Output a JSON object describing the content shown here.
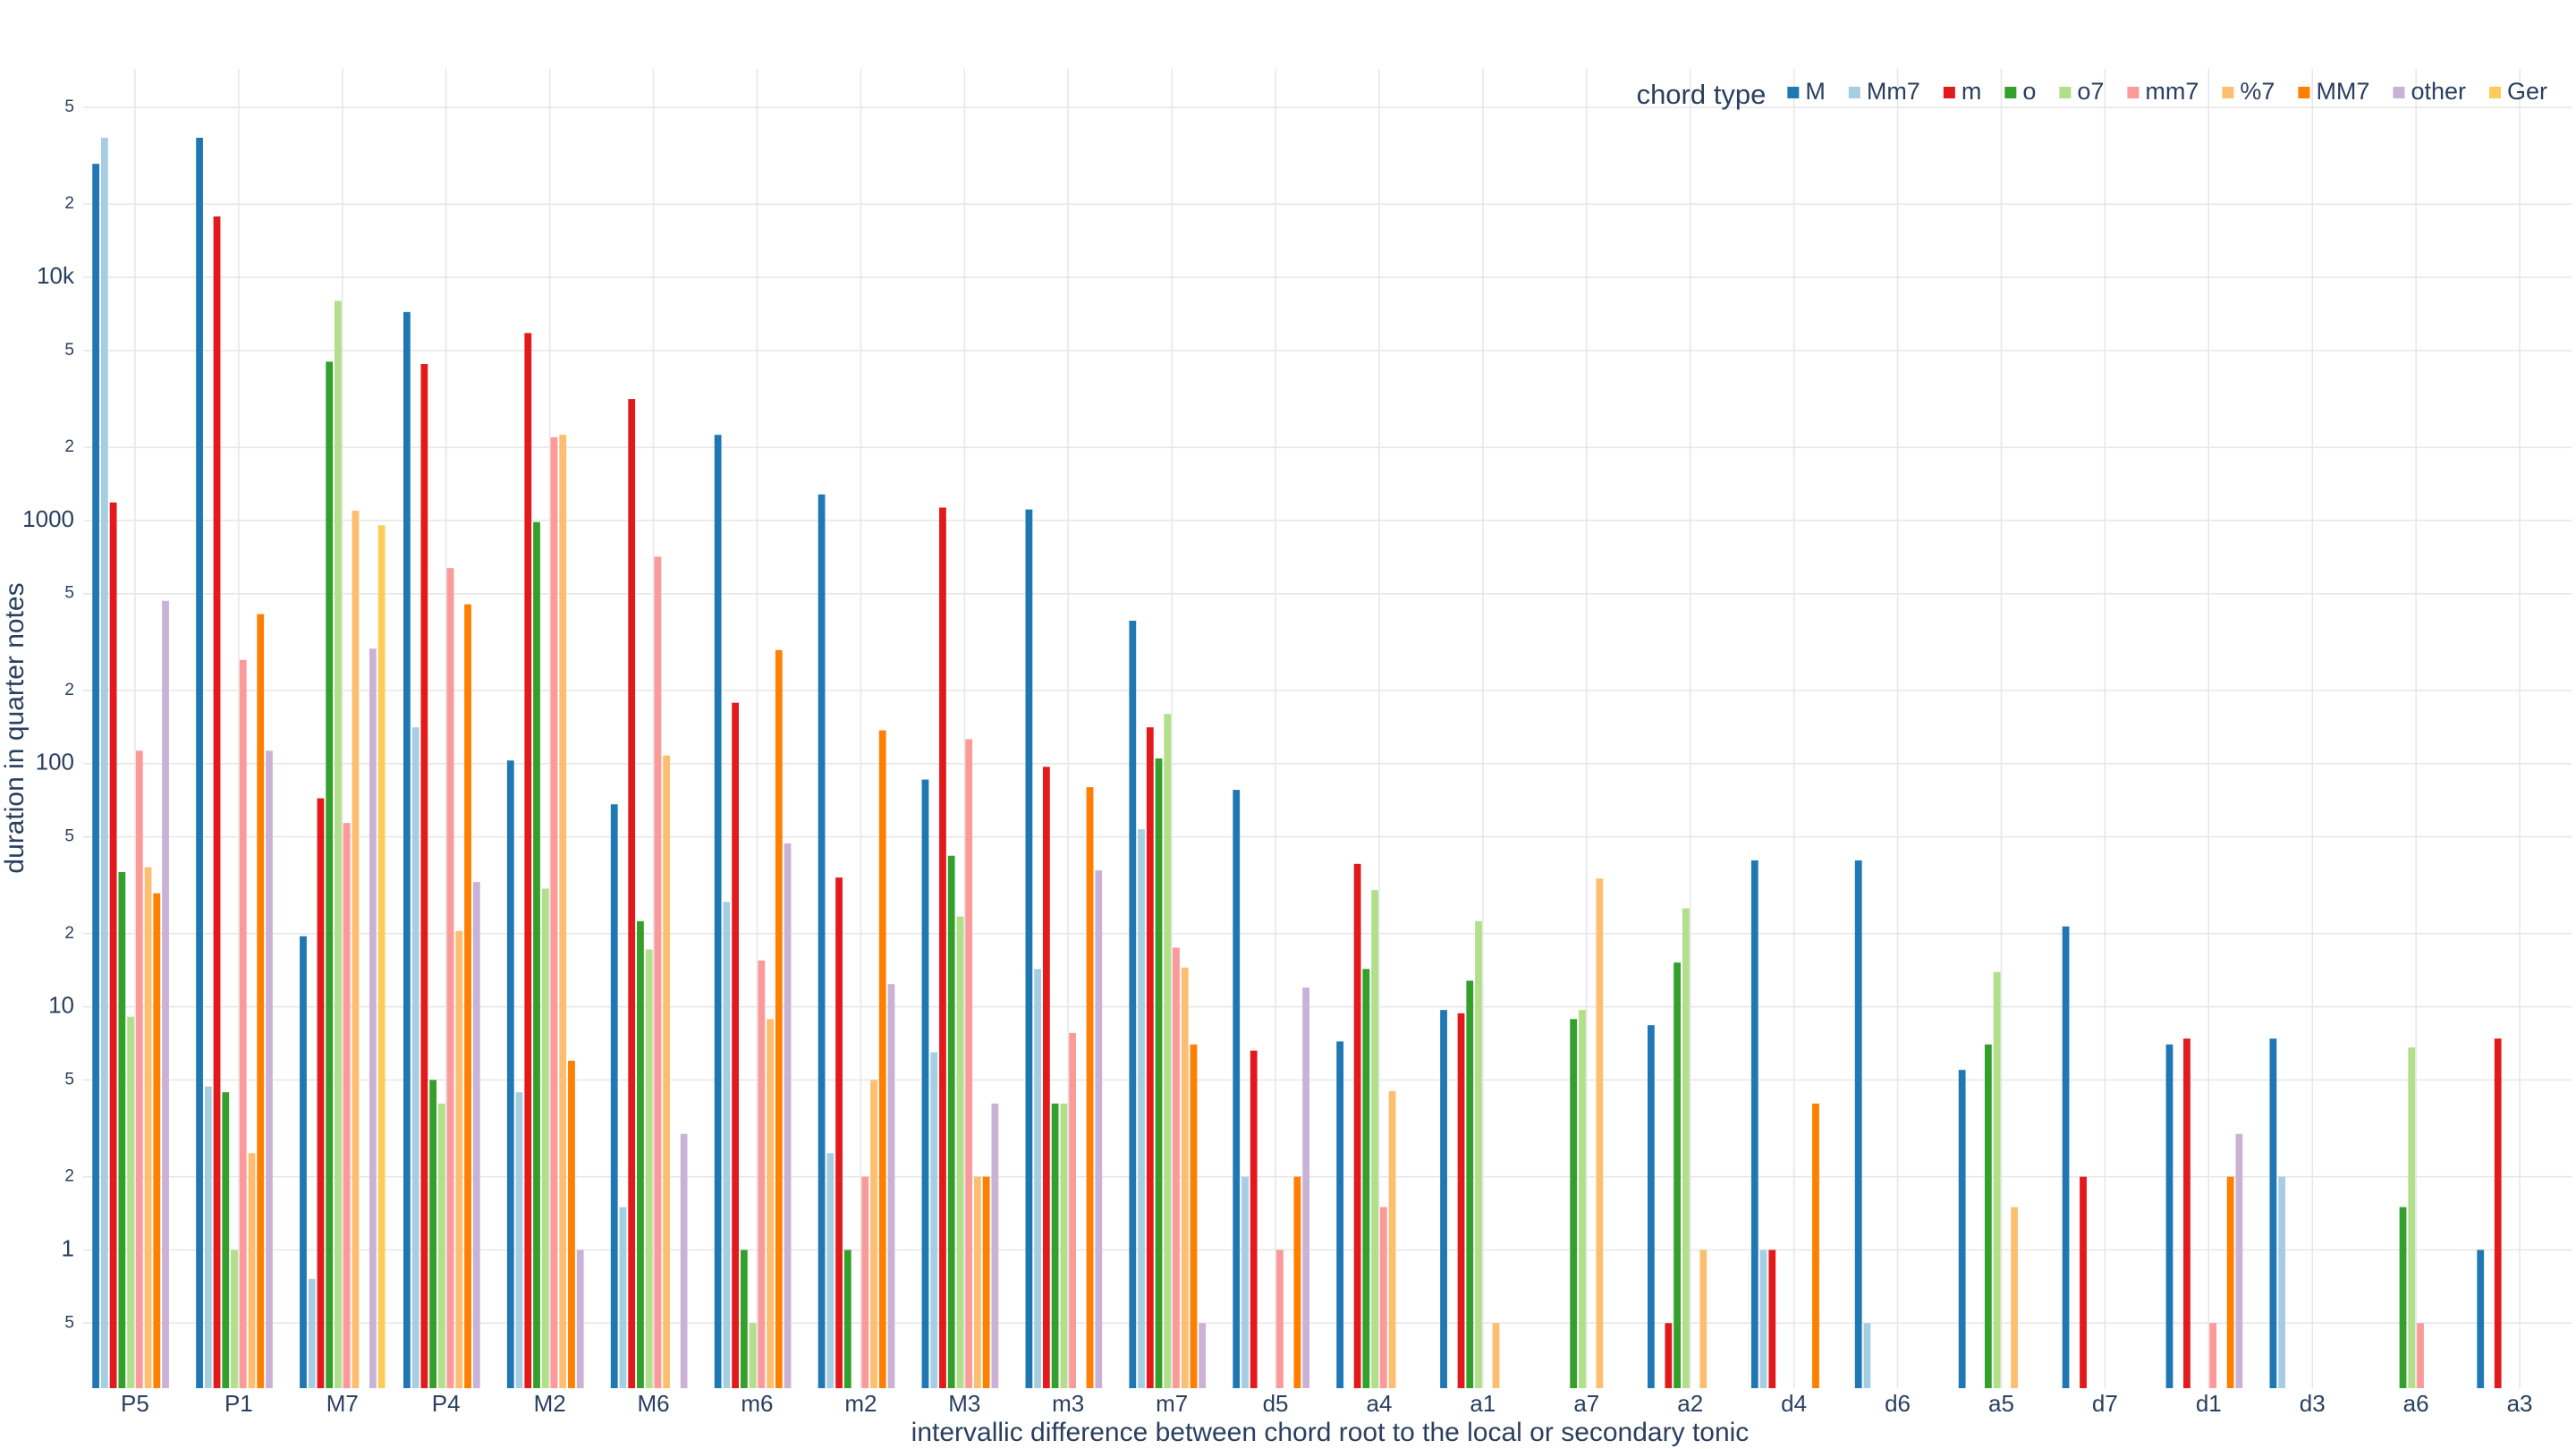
{
  "chart_data": {
    "type": "bar",
    "x_label": "intervallic difference between chord root to the local or secondary tonic",
    "y_label": "duration in quarter notes",
    "legend_title": "chord type",
    "legend_location": "top right",
    "log_y": true,
    "grid": true,
    "categories": [
      "P5",
      "P1",
      "M7",
      "P4",
      "M2",
      "M6",
      "m6",
      "m2",
      "M3",
      "m3",
      "m7",
      "d5",
      "a4",
      "a1",
      "a7",
      "a2",
      "d4",
      "d6",
      "a5",
      "d7",
      "d1",
      "d3",
      "a6",
      "a3"
    ],
    "ylim": [
      0.27,
      72000
    ],
    "yticks": [
      {
        "value": 0.5,
        "label": "5"
      },
      1,
      2,
      5,
      10,
      {
        "value": 20,
        "label": "2"
      },
      {
        "value": 50,
        "label": "5"
      },
      100,
      {
        "value": 200,
        "label": "2"
      },
      {
        "value": 500,
        "label": "5"
      },
      1000,
      {
        "value": 2000,
        "label": "2"
      },
      {
        "value": 5000,
        "label": "5"
      },
      {
        "value": 10000,
        "label": "10k"
      },
      {
        "value": 20000,
        "label": "2"
      },
      {
        "value": 50000,
        "label": "5"
      }
    ],
    "series": [
      {
        "name": "M",
        "color": "#1f78b4",
        "values": [
          29300,
          37500,
          19.5,
          7200,
          103,
          68,
          2250,
          1280,
          86,
          1110,
          387,
          78,
          7.2,
          9.7,
          null,
          8.4,
          40,
          40,
          5.5,
          21.4,
          7,
          7.4,
          null,
          1
        ]
      },
      {
        "name": "Mm7",
        "color": "#a6cee3",
        "values": [
          37500,
          4.7,
          0.76,
          141,
          4.45,
          1.5,
          27,
          2.5,
          6.5,
          14.3,
          53.7,
          2,
          null,
          null,
          null,
          null,
          1,
          0.5,
          null,
          null,
          null,
          2,
          null,
          null
        ]
      },
      {
        "name": "m",
        "color": "#e31a1c",
        "values": [
          1186,
          17800,
          72,
          4400,
          5900,
          3160,
          178,
          34,
          1130,
          97,
          141,
          6.6,
          38.7,
          9.4,
          null,
          0.5,
          1,
          null,
          null,
          2,
          7.4,
          null,
          null,
          7.4
        ]
      },
      {
        "name": "o",
        "color": "#33a02c",
        "values": [
          35.8,
          4.45,
          4500,
          5,
          985,
          22.5,
          1,
          1,
          41.8,
          4,
          105,
          null,
          14.3,
          12.8,
          8.9,
          15.2,
          null,
          null,
          7,
          null,
          null,
          null,
          1.5,
          null
        ]
      },
      {
        "name": "o7",
        "color": "#b2df8a",
        "values": [
          9.1,
          1,
          8000,
          4,
          30.6,
          17.2,
          0.5,
          null,
          23.5,
          4,
          160,
          null,
          30.2,
          22.5,
          9.7,
          25.4,
          null,
          null,
          13.9,
          null,
          null,
          null,
          6.8,
          null
        ]
      },
      {
        "name": "mm7",
        "color": "#fb9a99",
        "values": [
          113,
          267,
          57,
          637,
          2200,
          710,
          15.5,
          2,
          126,
          7.8,
          17.5,
          1,
          1.5,
          null,
          null,
          null,
          null,
          null,
          null,
          null,
          0.5,
          null,
          0.5,
          null
        ]
      },
      {
        "name": "%7",
        "color": "#fdbf6f",
        "values": [
          37.5,
          2.5,
          1097,
          20.5,
          2250,
          108,
          8.9,
          5,
          2,
          null,
          14.5,
          null,
          4.5,
          0.5,
          33.7,
          1,
          null,
          null,
          1.5,
          null,
          null,
          null,
          null,
          null
        ]
      },
      {
        "name": "MM7",
        "color": "#ff7f00",
        "values": [
          29.3,
          412,
          null,
          452,
          6,
          null,
          293,
          137,
          2,
          80,
          7,
          2,
          null,
          null,
          null,
          null,
          4,
          null,
          null,
          null,
          2,
          null,
          null,
          null
        ]
      },
      {
        "name": "other",
        "color": "#cab2d6",
        "values": [
          467,
          113,
          297,
          32.6,
          1,
          3,
          47,
          12.4,
          4,
          36.4,
          0.5,
          12,
          null,
          null,
          null,
          null,
          null,
          null,
          null,
          null,
          3,
          null,
          null,
          null
        ]
      },
      {
        "name": "Ger",
        "color": "#fccb5a",
        "values": [
          null,
          null,
          955,
          null,
          null,
          null,
          null,
          null,
          null,
          null,
          null,
          null,
          null,
          null,
          null,
          null,
          null,
          null,
          null,
          null,
          null,
          null,
          null,
          null
        ]
      }
    ]
  }
}
